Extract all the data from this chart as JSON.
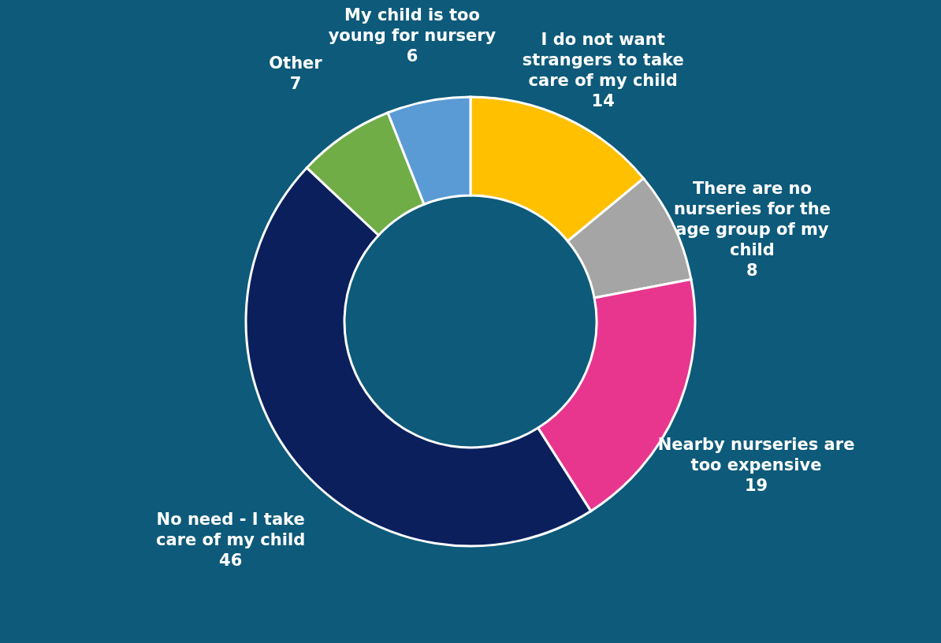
{
  "chart_data": {
    "type": "donut",
    "categories": [
      "I do not want strangers to take care of my child",
      "There are no nurseries for the age group of my child",
      "Nearby nurseries are too expensive",
      "No need - I take care of my child",
      "Other",
      "My child is too young for nursery"
    ],
    "values": [
      14,
      8,
      19,
      46,
      7,
      6
    ],
    "colors": [
      "#ffc000",
      "#a5a5a5",
      "#e8368f",
      "#0a1f5c",
      "#70ad47",
      "#5b9bd5"
    ],
    "data_labels": true,
    "legend": false
  }
}
